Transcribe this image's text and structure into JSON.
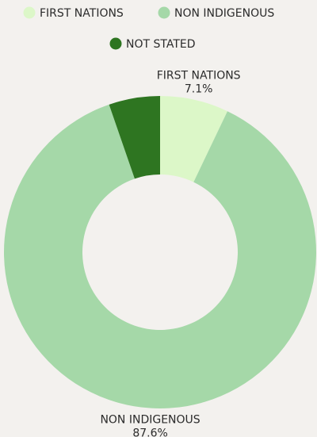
{
  "chart_data": {
    "type": "donut",
    "categories": [
      "FIRST NATIONS",
      "NON INDIGENOUS",
      "NOT STATED"
    ],
    "values": [
      7.1,
      87.6,
      5.3
    ],
    "value_labels": [
      "7.1%",
      "87.6%",
      null
    ],
    "colors": [
      "#dcf7c8",
      "#a5d8a8",
      "#2e7521"
    ]
  }
}
